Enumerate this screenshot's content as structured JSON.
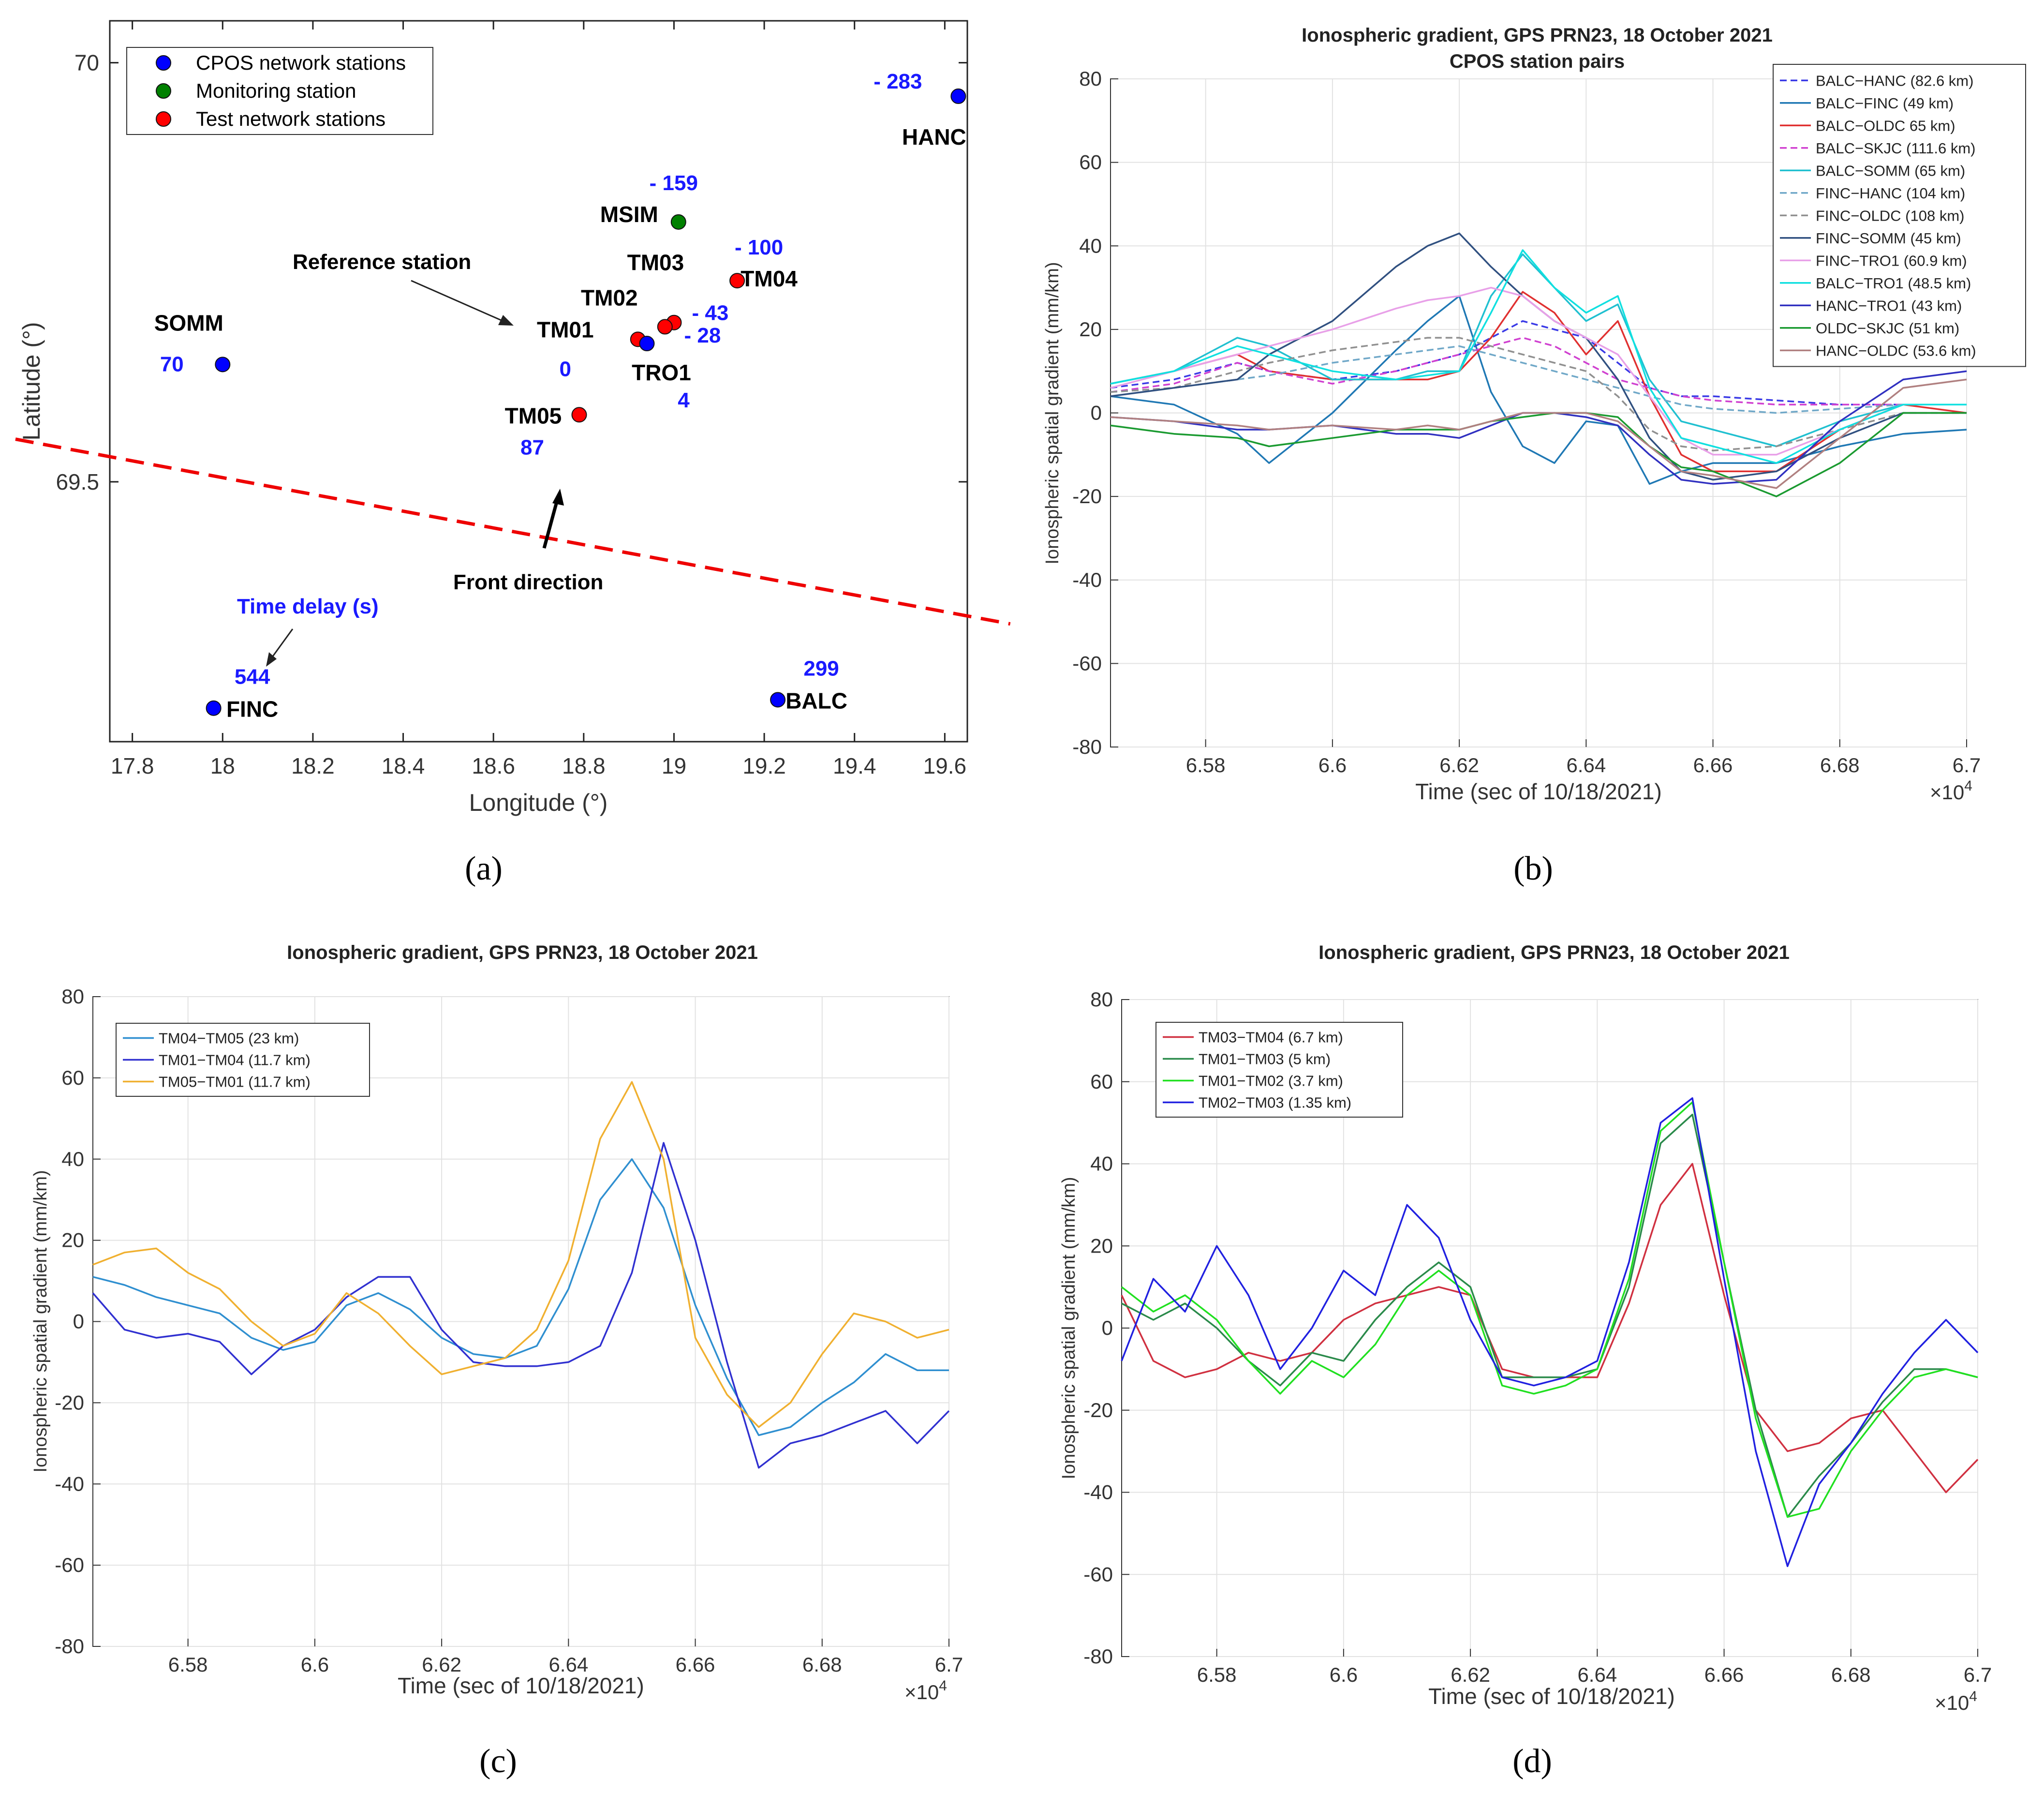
{
  "panel_tags": [
    "(a)",
    "(b)",
    "(c)",
    "(d)"
  ],
  "chart_data": [
    {
      "id": "a",
      "type": "scatter",
      "title": "",
      "xlabel": "Longitude (°)",
      "ylabel": "Latitude (°)",
      "xlim": [
        17.75,
        19.65
      ],
      "ylim": [
        69.19,
        70.05
      ],
      "xticks": [
        17.8,
        18,
        18.2,
        18.4,
        18.6,
        18.8,
        19,
        19.2,
        19.4,
        19.6
      ],
      "yticks": [
        69.5,
        70
      ],
      "legend": [
        {
          "label": "CPOS network stations",
          "color": "#0000ff"
        },
        {
          "label": "Monitoring station",
          "color": "#008000"
        },
        {
          "label": "Test network stations",
          "color": "#ff0000"
        }
      ],
      "stations": [
        {
          "name": "HANC",
          "lon": 19.63,
          "lat": 69.96,
          "group": 0,
          "delay": "- 283"
        },
        {
          "name": "MSIM",
          "lon": 19.01,
          "lat": 69.81,
          "group": 1,
          "delay": "- 159"
        },
        {
          "name": "TM04",
          "lon": 19.14,
          "lat": 69.74,
          "group": 2,
          "delay": "- 100"
        },
        {
          "name": "TM03",
          "lon": 19.0,
          "lat": 69.69,
          "group": 2,
          "delay": "- 43"
        },
        {
          "name": "TM02",
          "lon": 18.98,
          "lat": 69.685,
          "group": 2,
          "delay": ""
        },
        {
          "name": "TM01",
          "lon": 18.92,
          "lat": 69.67,
          "group": 2,
          "delay": "0"
        },
        {
          "name": "TRO1",
          "lon": 18.94,
          "lat": 69.665,
          "group": 0,
          "delay": "4"
        },
        {
          "name": "SOMM",
          "lon": 18.0,
          "lat": 69.64,
          "group": 0,
          "delay": "70"
        },
        {
          "name": "TM05",
          "lon": 18.79,
          "lat": 69.58,
          "group": 2,
          "delay": "87"
        },
        {
          "name": "FINC",
          "lon": 17.98,
          "lat": 69.23,
          "group": 0,
          "delay": "544"
        },
        {
          "name": "BALC",
          "lon": 19.23,
          "lat": 69.24,
          "group": 0,
          "delay": "299"
        }
      ],
      "extra_delay_label": "- 28",
      "front_line": {
        "from": [
          17.75,
          69.53
        ],
        "to": [
          19.65,
          69.34
        ],
        "color": "#ee0000"
      },
      "annotations": {
        "reference": "Reference station",
        "front": "Front direction",
        "time_delay": "Time delay (s)"
      }
    },
    {
      "id": "b",
      "type": "line",
      "title": "Ionospheric gradient, GPS PRN23, 18 October 2021",
      "subtitle": "CPOS station pairs",
      "xlabel": "Time (sec of 10/18/2021)",
      "ylabel": "Ionospheric spatial gradient (mm/km)",
      "xlim": [
        6.565,
        6.7
      ],
      "ylim": [
        -80,
        80
      ],
      "xticks": [
        6.58,
        6.6,
        6.62,
        6.64,
        6.66,
        6.68,
        6.7
      ],
      "yticks": [
        -80,
        -60,
        -40,
        -20,
        0,
        20,
        40,
        60,
        80
      ],
      "x_multiplier": "×10",
      "x_exponent": "4",
      "x": [
        6.565,
        6.575,
        6.585,
        6.59,
        6.6,
        6.61,
        6.615,
        6.62,
        6.625,
        6.63,
        6.635,
        6.64,
        6.645,
        6.65,
        6.655,
        6.66,
        6.67,
        6.68,
        6.69,
        6.7
      ],
      "series": [
        {
          "name": "BALC−HANC (82.6 km)",
          "color": "#3a3ae6",
          "dash": "14,8",
          "values": [
            6,
            8,
            12,
            10,
            8,
            10,
            12,
            14,
            18,
            22,
            20,
            18,
            12,
            6,
            4,
            4,
            3,
            2,
            2,
            2
          ]
        },
        {
          "name": "BALC−FINC (49 km)",
          "color": "#1f78b4",
          "dash": "",
          "values": [
            4,
            2,
            -5,
            -12,
            0,
            15,
            22,
            28,
            5,
            -8,
            -12,
            -2,
            -3,
            -17,
            -14,
            -12,
            -12,
            -8,
            -5,
            -4
          ]
        },
        {
          "name": "BALC−OLDC 65 km)",
          "color": "#e03030",
          "dash": "",
          "values": [
            7,
            10,
            14,
            10,
            8,
            8,
            8,
            10,
            18,
            29,
            24,
            14,
            22,
            4,
            -10,
            -14,
            -14,
            -4,
            2,
            0
          ]
        },
        {
          "name": "BALC−SKJC (111.6 km)",
          "color": "#d040d0",
          "dash": "14,8",
          "values": [
            5,
            7,
            12,
            10,
            7,
            10,
            12,
            14,
            16,
            18,
            16,
            12,
            8,
            6,
            4,
            3,
            2,
            2,
            2,
            2
          ]
        },
        {
          "name": "BALC−SOMM (65 km)",
          "color": "#20c0d0",
          "dash": "",
          "values": [
            7,
            10,
            18,
            16,
            8,
            8,
            10,
            10,
            28,
            38,
            30,
            22,
            26,
            8,
            -2,
            -4,
            -8,
            -2,
            2,
            2
          ]
        },
        {
          "name": "FINC−HANC (104 km)",
          "color": "#70a8c8",
          "dash": "14,8",
          "values": [
            5,
            6,
            8,
            9,
            12,
            14,
            15,
            16,
            14,
            12,
            10,
            8,
            6,
            4,
            2,
            1,
            0,
            1,
            2,
            2
          ]
        },
        {
          "name": "FINC−OLDC (108 km)",
          "color": "#909090",
          "dash": "14,8",
          "values": [
            5,
            6,
            10,
            12,
            15,
            17,
            18,
            18,
            16,
            14,
            12,
            10,
            4,
            -4,
            -8,
            -9,
            -8,
            -4,
            0,
            0
          ]
        },
        {
          "name": "FINC−SOMM (45 km)",
          "color": "#305080",
          "dash": "",
          "values": [
            4,
            6,
            8,
            14,
            22,
            35,
            40,
            43,
            35,
            28,
            22,
            18,
            8,
            -6,
            -14,
            -16,
            -14,
            -6,
            0,
            0
          ]
        },
        {
          "name": "FINC−TRO1 (60.9 km)",
          "color": "#e8a0e8",
          "dash": "",
          "values": [
            6,
            10,
            14,
            16,
            20,
            25,
            27,
            28,
            30,
            28,
            22,
            18,
            14,
            4,
            -6,
            -10,
            -10,
            -4,
            2,
            2
          ]
        },
        {
          "name": "BALC−TRO1 (48.5 km)",
          "color": "#10e0e0",
          "dash": "",
          "values": [
            7,
            10,
            16,
            14,
            10,
            8,
            9,
            10,
            24,
            39,
            30,
            24,
            28,
            6,
            -6,
            -8,
            -12,
            -4,
            2,
            2
          ]
        },
        {
          "name": "HANC−TRO1 (43 km)",
          "color": "#3030c0",
          "dash": "",
          "values": [
            -1,
            -2,
            -4,
            -4,
            -3,
            -5,
            -5,
            -6,
            -3,
            0,
            0,
            -1,
            -3,
            -10,
            -16,
            -17,
            -16,
            -2,
            8,
            10
          ]
        },
        {
          "name": "OLDC−SKJC (51 km)",
          "color": "#1a9a30",
          "dash": "",
          "values": [
            -3,
            -5,
            -6,
            -8,
            -6,
            -4,
            -4,
            -4,
            -2,
            -1,
            0,
            0,
            -1,
            -8,
            -13,
            -14,
            -20,
            -12,
            0,
            0
          ]
        },
        {
          "name": "HANC−OLDC (53.6 km)",
          "color": "#b08080",
          "dash": "",
          "values": [
            -1,
            -2,
            -3,
            -4,
            -3,
            -4,
            -3,
            -4,
            -2,
            0,
            0,
            0,
            -2,
            -8,
            -14,
            -15,
            -18,
            -6,
            6,
            8
          ]
        }
      ]
    },
    {
      "id": "c",
      "type": "line",
      "title": "Ionospheric gradient, GPS PRN23, 18 October 2021",
      "xlabel": "Time (sec of 10/18/2021)",
      "ylabel": "Ionospheric spatial gradient (mm/km)",
      "xlim": [
        6.565,
        6.7
      ],
      "ylim": [
        -80,
        80
      ],
      "xticks": [
        6.58,
        6.6,
        6.62,
        6.64,
        6.66,
        6.68,
        6.7
      ],
      "yticks": [
        -80,
        -60,
        -40,
        -20,
        0,
        20,
        40,
        60,
        80
      ],
      "x_multiplier": "×10",
      "x_exponent": "4",
      "x": [
        6.565,
        6.57,
        6.575,
        6.58,
        6.585,
        6.59,
        6.595,
        6.6,
        6.605,
        6.61,
        6.615,
        6.62,
        6.625,
        6.63,
        6.635,
        6.64,
        6.645,
        6.65,
        6.655,
        6.66,
        6.665,
        6.67,
        6.675,
        6.68,
        6.685,
        6.69,
        6.695,
        6.7
      ],
      "series": [
        {
          "name": "TM04−TM05 (23 km)",
          "color": "#2f8fd0",
          "values": [
            11,
            9,
            6,
            4,
            2,
            -4,
            -7,
            -5,
            4,
            7,
            3,
            -4,
            -8,
            -9,
            -6,
            8,
            30,
            40,
            28,
            4,
            -14,
            -28,
            -26,
            -20,
            -15,
            -8,
            -12,
            -12
          ]
        },
        {
          "name": "TM01−TM04 (11.7 km)",
          "color": "#3030d0",
          "values": [
            7,
            -2,
            -4,
            -3,
            -5,
            -13,
            -6,
            -2,
            6,
            11,
            11,
            -2,
            -10,
            -11,
            -11,
            -10,
            -6,
            12,
            44,
            20,
            -10,
            -36,
            -30,
            -28,
            -25,
            -22,
            -30,
            -22
          ]
        },
        {
          "name": "TM05−TM01 (11.7 km)",
          "color": "#f0b030",
          "values": [
            14,
            17,
            18,
            12,
            8,
            0,
            -6,
            -3,
            7,
            2,
            -6,
            -13,
            -11,
            -9,
            -2,
            15,
            45,
            59,
            40,
            -4,
            -18,
            -26,
            -20,
            -8,
            2,
            0,
            -4,
            -2
          ]
        }
      ]
    },
    {
      "id": "d",
      "type": "line",
      "title": "Ionospheric gradient, GPS PRN23, 18 October 2021",
      "xlabel": "Time (sec of 10/18/2021)",
      "ylabel": "Ionospheric spatial gradient (mm/km)",
      "xlim": [
        6.565,
        6.7
      ],
      "ylim": [
        -80,
        80
      ],
      "xticks": [
        6.58,
        6.6,
        6.62,
        6.64,
        6.66,
        6.68,
        6.7
      ],
      "yticks": [
        -80,
        -60,
        -40,
        -20,
        0,
        20,
        40,
        60,
        80
      ],
      "x_multiplier": "×10",
      "x_exponent": "4",
      "x": [
        6.565,
        6.57,
        6.575,
        6.58,
        6.585,
        6.59,
        6.595,
        6.6,
        6.605,
        6.61,
        6.615,
        6.62,
        6.625,
        6.63,
        6.635,
        6.64,
        6.645,
        6.65,
        6.655,
        6.66,
        6.665,
        6.67,
        6.675,
        6.68,
        6.685,
        6.69,
        6.695,
        6.7
      ],
      "series": [
        {
          "name": "TM03−TM04 (6.7 km)",
          "color": "#d03040",
          "values": [
            8,
            -8,
            -12,
            -10,
            -6,
            -8,
            -6,
            2,
            6,
            8,
            10,
            8,
            -10,
            -12,
            -12,
            -12,
            6,
            30,
            40,
            8,
            -20,
            -30,
            -28,
            -22,
            -20,
            -30,
            -40,
            -32
          ]
        },
        {
          "name": "TM01−TM03 (5 km)",
          "color": "#2a8a4a",
          "values": [
            6,
            2,
            6,
            0,
            -8,
            -14,
            -6,
            -8,
            2,
            10,
            16,
            10,
            -12,
            -12,
            -12,
            -10,
            10,
            45,
            52,
            16,
            -20,
            -46,
            -36,
            -28,
            -18,
            -10,
            -10,
            -12
          ]
        },
        {
          "name": "TM01−TM02 (3.7 km)",
          "color": "#20e020",
          "values": [
            10,
            4,
            8,
            2,
            -8,
            -16,
            -8,
            -12,
            -4,
            8,
            14,
            8,
            -14,
            -16,
            -14,
            -10,
            12,
            48,
            55,
            16,
            -22,
            -46,
            -44,
            -30,
            -20,
            -12,
            -10,
            -12
          ]
        },
        {
          "name": "TM02−TM03 (1.35 km)",
          "color": "#2020e0",
          "values": [
            -8,
            12,
            4,
            20,
            8,
            -10,
            0,
            14,
            8,
            30,
            22,
            2,
            -12,
            -14,
            -12,
            -8,
            16,
            50,
            56,
            12,
            -30,
            -58,
            -38,
            -28,
            -16,
            -6,
            2,
            -6
          ]
        }
      ]
    }
  ]
}
